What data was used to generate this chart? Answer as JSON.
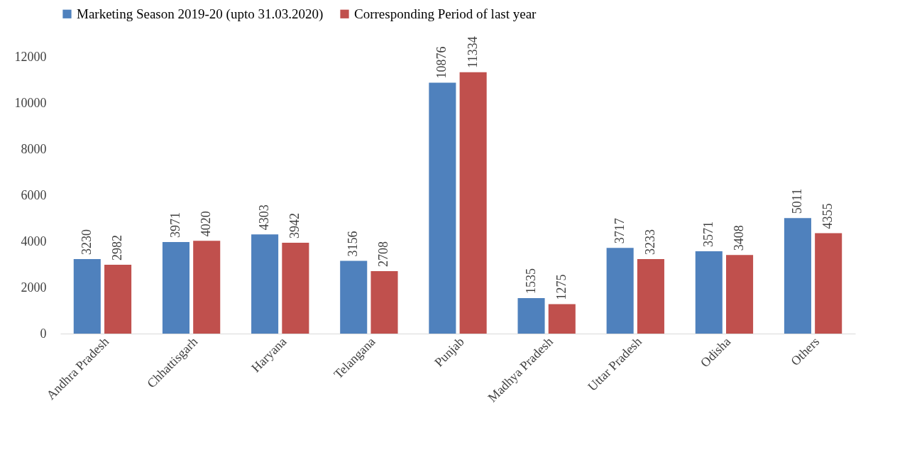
{
  "chart_data": {
    "type": "bar",
    "categories": [
      "Andhra Pradesh",
      "Chhattisgarh",
      "Haryana",
      "Telangana",
      "Punjab",
      "Madhya Pradesh",
      "Uttar Pradesh",
      "Odisha",
      "Others"
    ],
    "series": [
      {
        "name": "Marketing Season 2019-20 (upto 31.03.2020)",
        "color": "#4f81bd",
        "values": [
          3230,
          3971,
          4303,
          3156,
          10876,
          1535,
          3717,
          3571,
          5011
        ]
      },
      {
        "name": "Corresponding Period of last year",
        "color": "#c0504d",
        "values": [
          2982,
          4020,
          3942,
          2708,
          11334,
          1275,
          3233,
          3408,
          4355
        ]
      }
    ],
    "ylim": [
      0,
      12000
    ],
    "yticks": [
      0,
      2000,
      4000,
      6000,
      8000,
      10000,
      12000
    ],
    "grid": false,
    "legend": "top",
    "data_labels": true
  }
}
